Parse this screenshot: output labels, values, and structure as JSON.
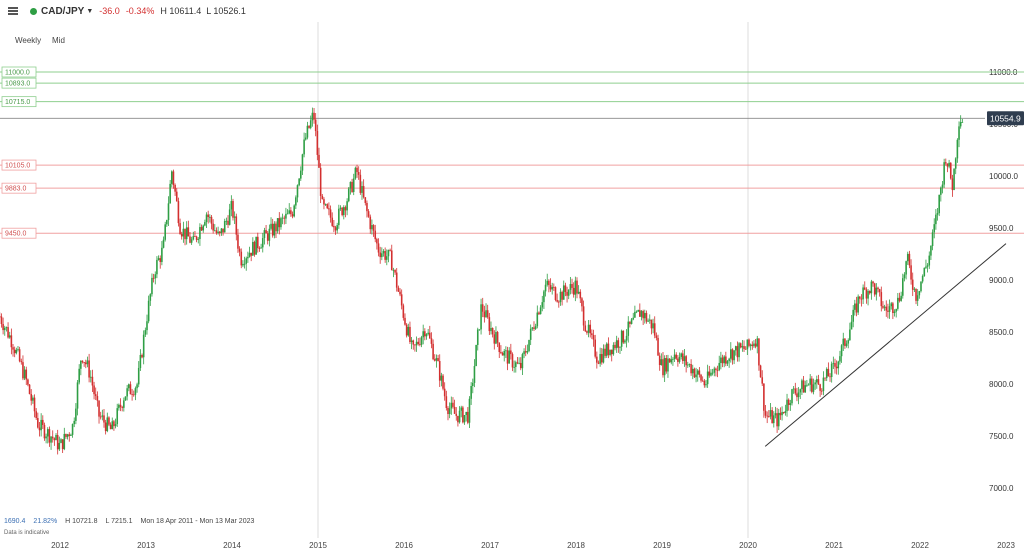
{
  "header": {
    "symbol": "CAD/JPY",
    "change": "-36.0",
    "change_pct": "-0.34%",
    "high": "H 10611.4",
    "low": "L 10526.1",
    "status_color": "#2e9e44"
  },
  "subheader": {
    "interval": "Weekly",
    "price_type": "Mid"
  },
  "footer": {
    "s1": "1690.4",
    "s2": "21.82%",
    "s3": "H 10721.8",
    "s4": "L 7215.1",
    "s5": "Mon 18 Apr 2011 - Mon 13 Mar 2023",
    "note": "Data is indicative"
  },
  "colors": {
    "up": "#2e9e44",
    "down": "#d32f2f",
    "resistance": "#8fcf8f",
    "support": "#f0a0a0",
    "trend": "#333333",
    "last_price_bg": "#2f3d4f"
  },
  "chart_data": {
    "type": "candlestick",
    "x_range": [
      2011.3,
      2023.2
    ],
    "ylim": [
      6500,
      11300
    ],
    "y_ticks": [
      "11000.0",
      "10500.0",
      "10000.0",
      "9500.0",
      "9000.0",
      "8500.0",
      "8000.0",
      "7500.0",
      "7000.0"
    ],
    "x_ticks": [
      "2012",
      "2013",
      "2014",
      "2015",
      "2016",
      "2017",
      "2018",
      "2019",
      "2020",
      "2021",
      "2022",
      "2023"
    ],
    "resistance_levels": [
      "11000.0",
      "10893.0",
      "10715.0"
    ],
    "support_levels": [
      "10105.0",
      "9883.0",
      "9450.0"
    ],
    "last_price": "10554.9",
    "trendline": {
      "from": [
        2020.2,
        7400
      ],
      "to": [
        2023.0,
        9350
      ]
    },
    "price_path": [
      [
        2011.3,
        8650
      ],
      [
        2011.45,
        8400
      ],
      [
        2011.6,
        8050
      ],
      [
        2011.75,
        7600
      ],
      [
        2011.9,
        7500
      ],
      [
        2012.0,
        7400
      ],
      [
        2012.15,
        7600
      ],
      [
        2012.25,
        8300
      ],
      [
        2012.35,
        8100
      ],
      [
        2012.45,
        7700
      ],
      [
        2012.6,
        7550
      ],
      [
        2012.75,
        7900
      ],
      [
        2012.9,
        8000
      ],
      [
        2013.0,
        8600
      ],
      [
        2013.1,
        9100
      ],
      [
        2013.2,
        9300
      ],
      [
        2013.3,
        10050
      ],
      [
        2013.4,
        9500
      ],
      [
        2013.55,
        9350
      ],
      [
        2013.7,
        9650
      ],
      [
        2013.85,
        9400
      ],
      [
        2014.0,
        9700
      ],
      [
        2014.1,
        9200
      ],
      [
        2014.3,
        9350
      ],
      [
        2014.5,
        9500
      ],
      [
        2014.7,
        9650
      ],
      [
        2014.85,
        10350
      ],
      [
        2014.95,
        10600
      ],
      [
        2015.05,
        9700
      ],
      [
        2015.2,
        9550
      ],
      [
        2015.35,
        9800
      ],
      [
        2015.45,
        10050
      ],
      [
        2015.55,
        9700
      ],
      [
        2015.7,
        9300
      ],
      [
        2015.85,
        9200
      ],
      [
        2016.0,
        8650
      ],
      [
        2016.1,
        8300
      ],
      [
        2016.25,
        8550
      ],
      [
        2016.4,
        8150
      ],
      [
        2016.5,
        7800
      ],
      [
        2016.6,
        7700
      ],
      [
        2016.75,
        7700
      ],
      [
        2016.9,
        8750
      ],
      [
        2017.0,
        8550
      ],
      [
        2017.15,
        8300
      ],
      [
        2017.35,
        8150
      ],
      [
        2017.5,
        8550
      ],
      [
        2017.65,
        8950
      ],
      [
        2017.8,
        8850
      ],
      [
        2018.0,
        8950
      ],
      [
        2018.1,
        8600
      ],
      [
        2018.25,
        8250
      ],
      [
        2018.4,
        8350
      ],
      [
        2018.55,
        8450
      ],
      [
        2018.75,
        8700
      ],
      [
        2018.9,
        8550
      ],
      [
        2019.0,
        8150
      ],
      [
        2019.15,
        8300
      ],
      [
        2019.35,
        8150
      ],
      [
        2019.5,
        8000
      ],
      [
        2019.65,
        8200
      ],
      [
        2019.8,
        8300
      ],
      [
        2020.0,
        8350
      ],
      [
        2020.1,
        8450
      ],
      [
        2020.2,
        7700
      ],
      [
        2020.35,
        7650
      ],
      [
        2020.5,
        7900
      ],
      [
        2020.7,
        8000
      ],
      [
        2020.85,
        8000
      ],
      [
        2021.0,
        8150
      ],
      [
        2021.15,
        8450
      ],
      [
        2021.3,
        8850
      ],
      [
        2021.45,
        8950
      ],
      [
        2021.6,
        8700
      ],
      [
        2021.75,
        8800
      ],
      [
        2021.85,
        9200
      ],
      [
        2021.95,
        8850
      ],
      [
        2022.1,
        9200
      ],
      [
        2022.2,
        9650
      ],
      [
        2022.3,
        10200
      ],
      [
        2022.38,
        9900
      ],
      [
        2022.45,
        10550
      ],
      [
        2022.5,
        10555
      ]
    ]
  }
}
